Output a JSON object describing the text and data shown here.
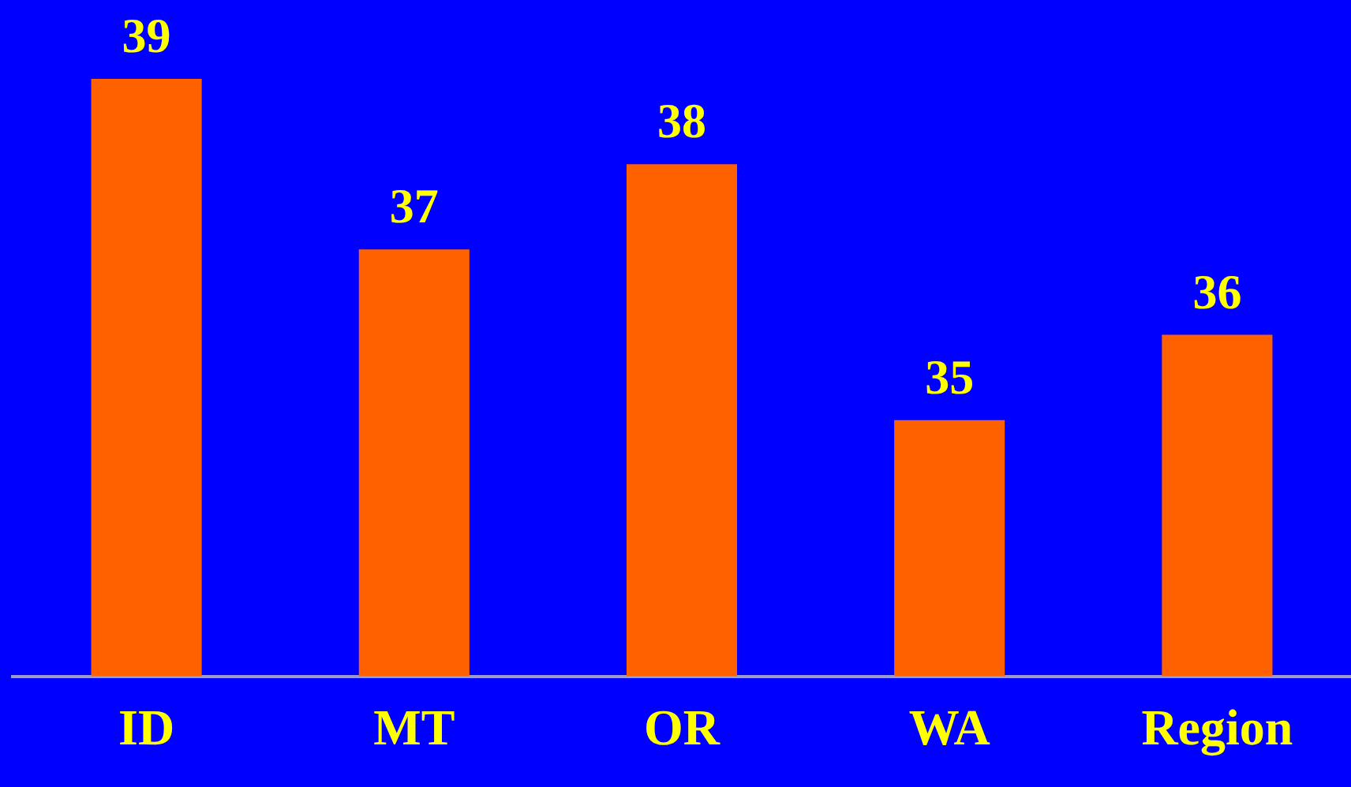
{
  "chart_data": {
    "type": "bar",
    "categories": [
      "ID",
      "MT",
      "OR",
      "WA",
      "Region"
    ],
    "values": [
      39,
      37,
      38,
      35,
      36
    ],
    "color": "#ff6000",
    "tick_labels": "x",
    "data_labels": true
  }
}
